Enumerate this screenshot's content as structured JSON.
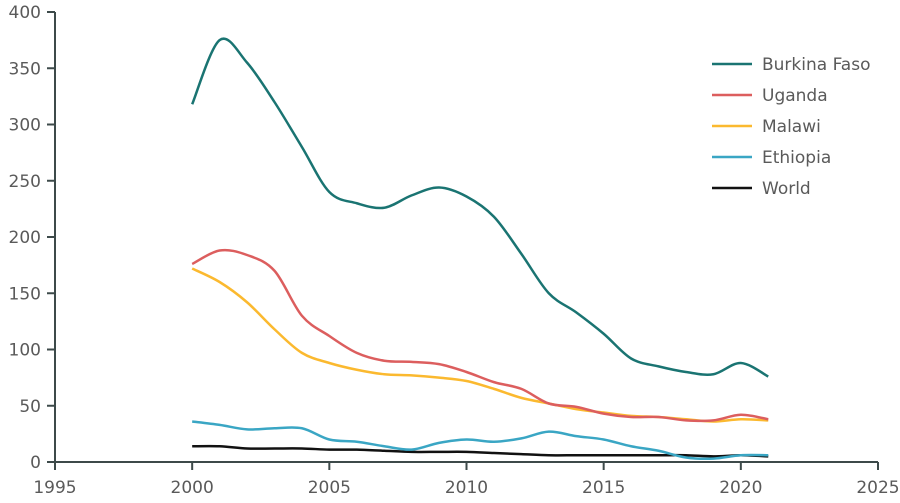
{
  "chart_data": {
    "type": "line",
    "title": "",
    "xlabel": "",
    "ylabel": "",
    "xlim": [
      1995,
      2025
    ],
    "ylim": [
      0,
      400
    ],
    "xticks": [
      1995,
      2000,
      2005,
      2010,
      2015,
      2020,
      2025
    ],
    "yticks": [
      0,
      50,
      100,
      150,
      200,
      250,
      300,
      350,
      400
    ],
    "grid": false,
    "legend_position": "top-right",
    "x": [
      2000,
      2001,
      2002,
      2003,
      2004,
      2005,
      2006,
      2007,
      2008,
      2009,
      2010,
      2011,
      2012,
      2013,
      2014,
      2015,
      2016,
      2017,
      2018,
      2019,
      2020,
      2021
    ],
    "series": [
      {
        "name": "Burkina Faso",
        "color": "#1a7472",
        "values": [
          318,
          375,
          355,
          320,
          280,
          240,
          230,
          226,
          237,
          244,
          236,
          218,
          185,
          150,
          133,
          114,
          92,
          85,
          80,
          78,
          88,
          76
        ]
      },
      {
        "name": "Uganda",
        "color": "#dc5e5e",
        "values": [
          176,
          188,
          184,
          170,
          130,
          112,
          97,
          90,
          89,
          87,
          80,
          71,
          65,
          52,
          49,
          43,
          40,
          40,
          37,
          37,
          42,
          38
        ]
      },
      {
        "name": "Malawi",
        "color": "#fbb92f",
        "values": [
          172,
          160,
          142,
          118,
          97,
          88,
          82,
          78,
          77,
          75,
          72,
          65,
          57,
          52,
          47,
          44,
          41,
          40,
          38,
          36,
          38,
          37
        ]
      },
      {
        "name": "Ethiopia",
        "color": "#3aa6c4",
        "values": [
          36,
          33,
          29,
          30,
          30,
          20,
          18,
          14,
          11,
          17,
          20,
          18,
          21,
          27,
          23,
          20,
          14,
          10,
          4,
          3,
          6,
          6
        ]
      },
      {
        "name": "World",
        "color": "#111111",
        "values": [
          14,
          14,
          12,
          12,
          12,
          11,
          11,
          10,
          9,
          9,
          9,
          8,
          7,
          6,
          6,
          6,
          6,
          6,
          6,
          5,
          6,
          5
        ]
      }
    ]
  }
}
